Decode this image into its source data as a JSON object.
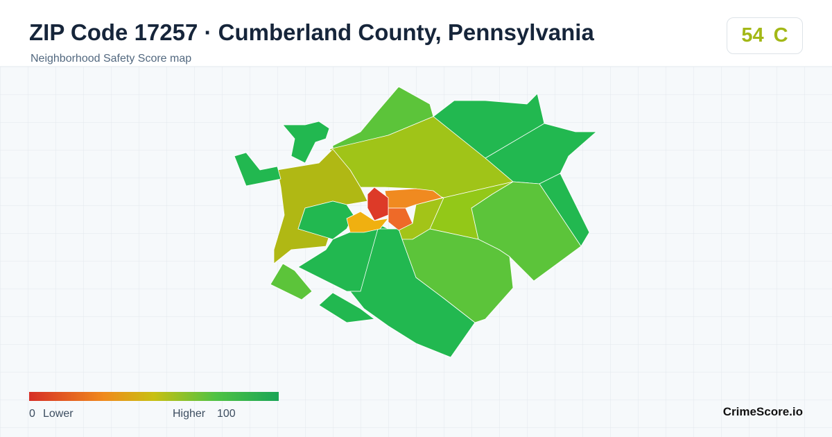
{
  "header": {
    "title": "ZIP Code 17257 · Cumberland County, Pennsylvania",
    "subtitle": "Neighborhood Safety Score map"
  },
  "score": {
    "value": 54,
    "grade": "C"
  },
  "legend": {
    "min": 0,
    "min_label": "Lower",
    "max_label": "Higher",
    "max": 100
  },
  "brand": "CrimeScore.io"
}
